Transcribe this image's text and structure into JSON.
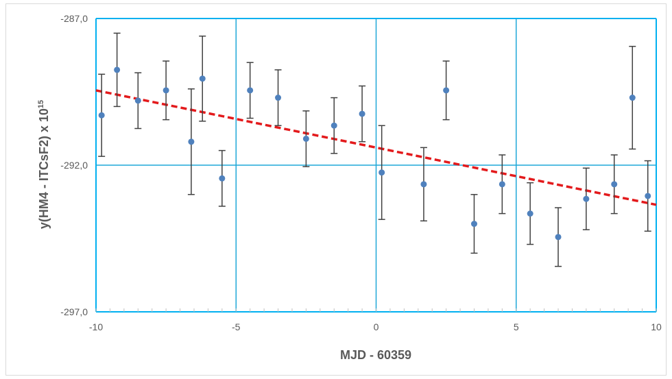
{
  "chart_data": {
    "type": "scatter",
    "xlabel": "MJD - 60359",
    "ylabel_main": "y(HM4 - ITCsF2) x 10",
    "ylabel_sup": "15",
    "xlim": [
      -10,
      10
    ],
    "ylim": [
      -297,
      -287
    ],
    "x_ticks": [
      -10,
      -5,
      0,
      5,
      10
    ],
    "x_tick_labels": [
      "-10",
      "-5",
      "0",
      "5",
      "10"
    ],
    "y_ticks": [
      -287,
      -292,
      -297
    ],
    "y_tick_labels": [
      "-287,0",
      "-292,0",
      "-297,0"
    ],
    "x_minor_step": 0.5,
    "grid": true,
    "colors": {
      "points": "#4f81bd",
      "error_bars": "#404040",
      "trend": "#e31a1c",
      "grid": "#1fa8d8",
      "frame": "#00b0f0"
    },
    "series": [
      {
        "type": "scatter_errorbars",
        "x": [
          -9.8,
          -9.25,
          -8.5,
          -7.5,
          -6.6,
          -6.2,
          -5.5,
          -4.5,
          -3.5,
          -2.5,
          -1.5,
          -0.5,
          0.2,
          1.7,
          2.5,
          3.5,
          4.5,
          5.5,
          6.5,
          7.5,
          8.5,
          9.15,
          9.7
        ],
        "y": [
          -290.3,
          -288.75,
          -289.8,
          -289.45,
          -291.2,
          -289.05,
          -292.45,
          -289.45,
          -289.7,
          -291.1,
          -290.65,
          -290.25,
          -292.25,
          -292.65,
          -289.45,
          -294.0,
          -292.65,
          -293.65,
          -294.45,
          -293.15,
          -292.65,
          -289.7,
          -293.05
        ],
        "err": [
          1.4,
          1.25,
          0.95,
          1.0,
          1.8,
          1.45,
          0.95,
          0.95,
          0.95,
          0.95,
          0.95,
          0.95,
          1.6,
          1.25,
          1.0,
          1.0,
          1.0,
          1.05,
          1.0,
          1.05,
          1.0,
          1.75,
          1.2
        ]
      },
      {
        "type": "trend_line",
        "x": [
          -10,
          10
        ],
        "y": [
          -289.45,
          -293.35
        ]
      }
    ]
  }
}
